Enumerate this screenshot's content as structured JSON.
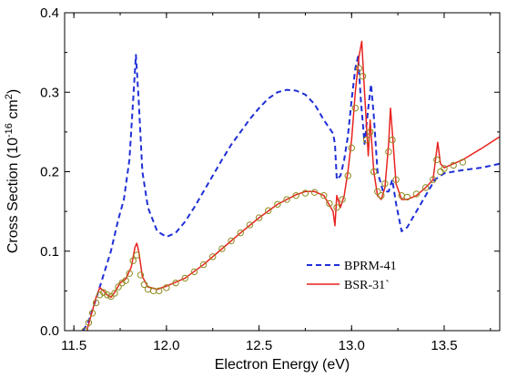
{
  "chart_data": {
    "type": "line",
    "title": "",
    "xlabel": "Electron Energy (eV)",
    "ylabel_parts": {
      "pre": "Cross Section (10",
      "exp1": "-16",
      "mid": " cm",
      "exp2": "2",
      "post": ")"
    },
    "xlim": [
      11.45,
      13.8
    ],
    "ylim": [
      0.0,
      0.4
    ],
    "x_ticks": [
      11.5,
      12.0,
      12.5,
      13.0,
      13.5
    ],
    "x_tick_labels": [
      "11.5",
      "12.0",
      "12.5",
      "13.0",
      "13.5"
    ],
    "y_ticks": [
      0.0,
      0.1,
      0.2,
      0.3,
      0.4
    ],
    "y_tick_labels": [
      "0.0",
      "0.1",
      "0.2",
      "0.3",
      "0.4"
    ],
    "grid": false,
    "legend_position": "lower-center",
    "series": [
      {
        "name": "BPRM-41",
        "style": "dashed",
        "color": "#1f2fd6",
        "points": [
          [
            11.55,
            0.0
          ],
          [
            11.58,
            0.012
          ],
          [
            11.62,
            0.04
          ],
          [
            11.66,
            0.07
          ],
          [
            11.7,
            0.1
          ],
          [
            11.74,
            0.14
          ],
          [
            11.77,
            0.165
          ],
          [
            11.8,
            0.215
          ],
          [
            11.82,
            0.29
          ],
          [
            11.835,
            0.347
          ],
          [
            11.85,
            0.29
          ],
          [
            11.87,
            0.2
          ],
          [
            11.9,
            0.155
          ],
          [
            11.95,
            0.125
          ],
          [
            12.0,
            0.118
          ],
          [
            12.05,
            0.123
          ],
          [
            12.1,
            0.137
          ],
          [
            12.15,
            0.155
          ],
          [
            12.2,
            0.175
          ],
          [
            12.25,
            0.195
          ],
          [
            12.3,
            0.215
          ],
          [
            12.35,
            0.234
          ],
          [
            12.4,
            0.25
          ],
          [
            12.45,
            0.266
          ],
          [
            12.5,
            0.28
          ],
          [
            12.55,
            0.292
          ],
          [
            12.6,
            0.3
          ],
          [
            12.65,
            0.303
          ],
          [
            12.7,
            0.302
          ],
          [
            12.75,
            0.297
          ],
          [
            12.8,
            0.285
          ],
          [
            12.85,
            0.265
          ],
          [
            12.9,
            0.248
          ],
          [
            12.91,
            0.235
          ],
          [
            12.92,
            0.19
          ],
          [
            12.94,
            0.195
          ],
          [
            12.96,
            0.215
          ],
          [
            12.98,
            0.245
          ],
          [
            13.0,
            0.29
          ],
          [
            13.02,
            0.33
          ],
          [
            13.035,
            0.345
          ],
          [
            13.05,
            0.29
          ],
          [
            13.07,
            0.235
          ],
          [
            13.09,
            0.28
          ],
          [
            13.105,
            0.31
          ],
          [
            13.12,
            0.27
          ],
          [
            13.14,
            0.2
          ],
          [
            13.17,
            0.175
          ],
          [
            13.2,
            0.175
          ],
          [
            13.22,
            0.19
          ],
          [
            13.24,
            0.16
          ],
          [
            13.27,
            0.125
          ],
          [
            13.3,
            0.13
          ],
          [
            13.35,
            0.15
          ],
          [
            13.4,
            0.17
          ],
          [
            13.45,
            0.19
          ],
          [
            13.5,
            0.198
          ],
          [
            13.55,
            0.2
          ],
          [
            13.6,
            0.202
          ],
          [
            13.7,
            0.205
          ],
          [
            13.8,
            0.21
          ]
        ]
      },
      {
        "name": "BSR-31`",
        "style": "solid",
        "color": "#e8231f",
        "points": [
          [
            11.57,
            0.0
          ],
          [
            11.6,
            0.025
          ],
          [
            11.62,
            0.042
          ],
          [
            11.64,
            0.054
          ],
          [
            11.66,
            0.05
          ],
          [
            11.68,
            0.045
          ],
          [
            11.7,
            0.042
          ],
          [
            11.72,
            0.048
          ],
          [
            11.75,
            0.06
          ],
          [
            11.78,
            0.065
          ],
          [
            11.81,
            0.08
          ],
          [
            11.83,
            0.105
          ],
          [
            11.84,
            0.11
          ],
          [
            11.85,
            0.1
          ],
          [
            11.87,
            0.068
          ],
          [
            11.9,
            0.055
          ],
          [
            11.95,
            0.052
          ],
          [
            12.0,
            0.056
          ],
          [
            12.1,
            0.066
          ],
          [
            12.2,
            0.083
          ],
          [
            12.3,
            0.103
          ],
          [
            12.4,
            0.123
          ],
          [
            12.5,
            0.142
          ],
          [
            12.6,
            0.159
          ],
          [
            12.7,
            0.171
          ],
          [
            12.75,
            0.175
          ],
          [
            12.8,
            0.175
          ],
          [
            12.85,
            0.17
          ],
          [
            12.9,
            0.15
          ],
          [
            12.91,
            0.132
          ],
          [
            12.92,
            0.17
          ],
          [
            12.94,
            0.155
          ],
          [
            12.96,
            0.17
          ],
          [
            12.98,
            0.2
          ],
          [
            13.0,
            0.24
          ],
          [
            13.02,
            0.3
          ],
          [
            13.04,
            0.345
          ],
          [
            13.055,
            0.364
          ],
          [
            13.07,
            0.3
          ],
          [
            13.09,
            0.22
          ],
          [
            13.1,
            0.265
          ],
          [
            13.12,
            0.2
          ],
          [
            13.14,
            0.17
          ],
          [
            13.16,
            0.165
          ],
          [
            13.18,
            0.18
          ],
          [
            13.2,
            0.235
          ],
          [
            13.21,
            0.28
          ],
          [
            13.22,
            0.25
          ],
          [
            13.24,
            0.185
          ],
          [
            13.27,
            0.165
          ],
          [
            13.3,
            0.165
          ],
          [
            13.35,
            0.17
          ],
          [
            13.4,
            0.18
          ],
          [
            13.44,
            0.19
          ],
          [
            13.465,
            0.237
          ],
          [
            13.48,
            0.21
          ],
          [
            13.5,
            0.205
          ],
          [
            13.6,
            0.215
          ],
          [
            13.7,
            0.229
          ],
          [
            13.8,
            0.244
          ]
        ]
      },
      {
        "name": "",
        "style": "markers",
        "marker": "open-circle",
        "color": "#8f8a1e",
        "points": [
          [
            11.56,
            0.0
          ],
          [
            11.58,
            0.01
          ],
          [
            11.6,
            0.022
          ],
          [
            11.62,
            0.035
          ],
          [
            11.64,
            0.045
          ],
          [
            11.66,
            0.048
          ],
          [
            11.68,
            0.045
          ],
          [
            11.7,
            0.043
          ],
          [
            11.72,
            0.047
          ],
          [
            11.74,
            0.055
          ],
          [
            11.76,
            0.06
          ],
          [
            11.78,
            0.063
          ],
          [
            11.8,
            0.072
          ],
          [
            11.82,
            0.088
          ],
          [
            11.84,
            0.095
          ],
          [
            11.86,
            0.07
          ],
          [
            11.88,
            0.058
          ],
          [
            11.9,
            0.052
          ],
          [
            11.93,
            0.05
          ],
          [
            11.96,
            0.05
          ],
          [
            12.0,
            0.054
          ],
          [
            12.05,
            0.06
          ],
          [
            12.1,
            0.066
          ],
          [
            12.15,
            0.074
          ],
          [
            12.2,
            0.083
          ],
          [
            12.25,
            0.093
          ],
          [
            12.3,
            0.103
          ],
          [
            12.35,
            0.113
          ],
          [
            12.4,
            0.123
          ],
          [
            12.45,
            0.133
          ],
          [
            12.5,
            0.142
          ],
          [
            12.55,
            0.151
          ],
          [
            12.6,
            0.159
          ],
          [
            12.65,
            0.165
          ],
          [
            12.7,
            0.17
          ],
          [
            12.75,
            0.173
          ],
          [
            12.8,
            0.174
          ],
          [
            12.85,
            0.17
          ],
          [
            12.88,
            0.16
          ],
          [
            12.92,
            0.155
          ],
          [
            12.95,
            0.165
          ],
          [
            12.98,
            0.195
          ],
          [
            13.0,
            0.23
          ],
          [
            13.02,
            0.28
          ],
          [
            13.04,
            0.33
          ],
          [
            13.06,
            0.32
          ],
          [
            13.08,
            0.24
          ],
          [
            13.1,
            0.25
          ],
          [
            13.12,
            0.2
          ],
          [
            13.14,
            0.175
          ],
          [
            13.16,
            0.17
          ],
          [
            13.18,
            0.185
          ],
          [
            13.2,
            0.225
          ],
          [
            13.22,
            0.24
          ],
          [
            13.24,
            0.19
          ],
          [
            13.27,
            0.17
          ],
          [
            13.3,
            0.168
          ],
          [
            13.35,
            0.172
          ],
          [
            13.4,
            0.18
          ],
          [
            13.44,
            0.19
          ],
          [
            13.46,
            0.215
          ],
          [
            13.48,
            0.2
          ],
          [
            13.5,
            0.204
          ],
          [
            13.55,
            0.208
          ],
          [
            13.6,
            0.212
          ]
        ]
      }
    ]
  }
}
